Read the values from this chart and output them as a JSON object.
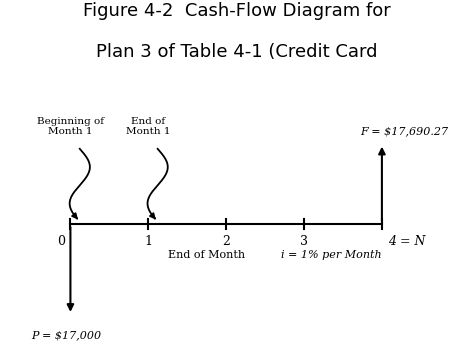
{
  "title_line1_bold": "Figure 4-2",
  "title_line1_rest": "  Cash-Flow Diagram for",
  "title_line2": "Plan 3 of Table 4-1 (Credit Card",
  "tick_positions": [
    0,
    1,
    2,
    3,
    4
  ],
  "tick_labels": [
    "0",
    "1",
    "2",
    "3",
    "4 = N"
  ],
  "label_P": "P = $17,000",
  "label_F": "F = $17,690.27",
  "label_end_of_month": "End of Month",
  "label_i": "i = 1% per Month",
  "label_beg_month1_line1": "Beginning of",
  "label_beg_month1_line2": "Month 1",
  "label_end_month1_line1": "End of",
  "label_end_month1_line2": "Month 1",
  "bg_color": "#ffffff",
  "line_color": "#000000",
  "font_color": "#000000",
  "title_fontsize": 13,
  "font_size_labels": 8,
  "font_size_tick": 9,
  "font_size_annot": 7.5,
  "xlim": [
    -0.6,
    5.0
  ],
  "ylim": [
    -2.6,
    2.2
  ]
}
